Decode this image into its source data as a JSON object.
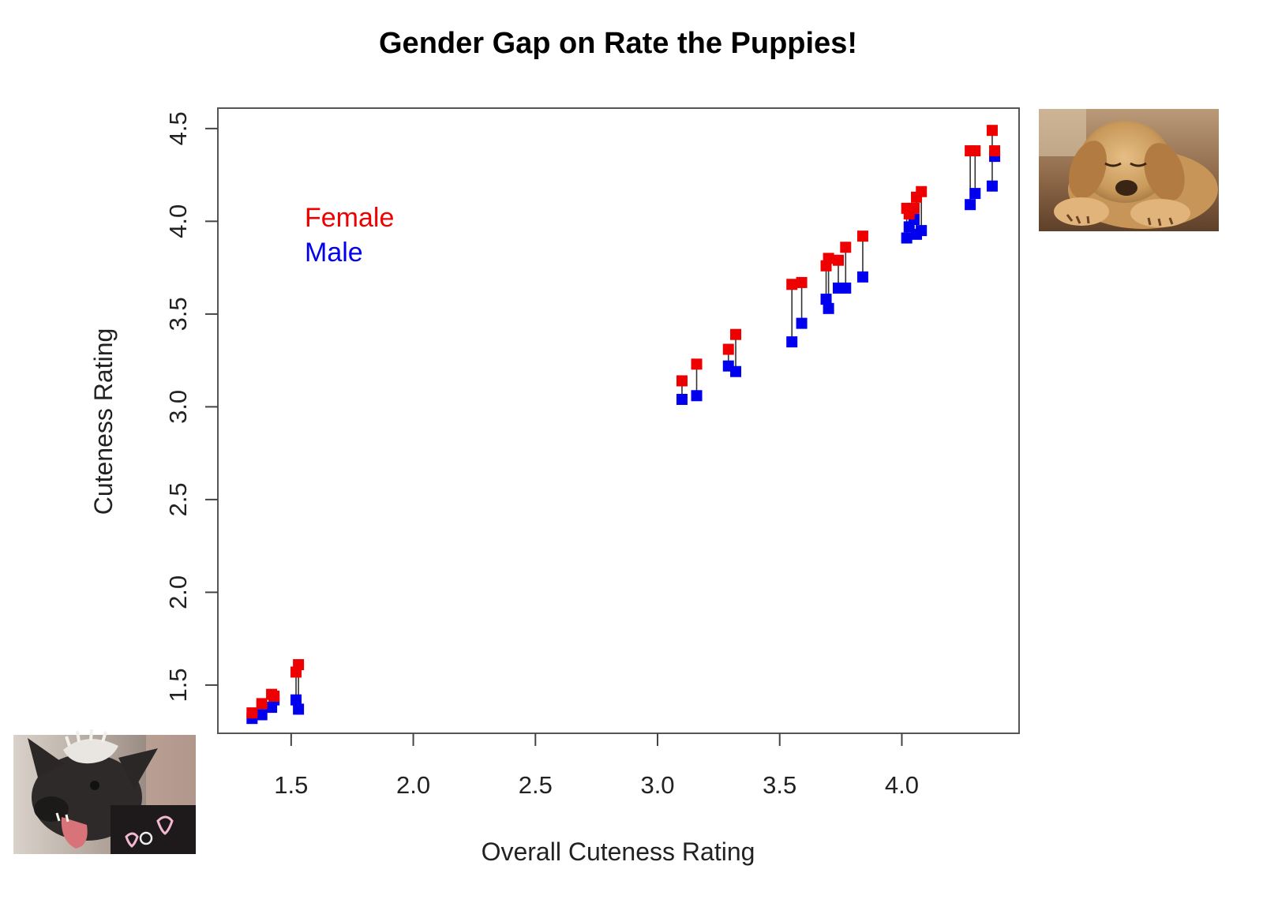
{
  "colors": {
    "female": "#ee0000",
    "male": "#0000ee",
    "connector": "#333333",
    "frame": "#555555"
  },
  "images": {
    "top_right": "sleeping-puppy-photo",
    "bottom_left": "hairless-dog-photo"
  },
  "chart_data": {
    "type": "scatter",
    "title": "Gender Gap on Rate the Puppies!",
    "xlabel": "Overall Cuteness Rating",
    "ylabel": "Cuteness Rating",
    "xlim": [
      1.2,
      4.48
    ],
    "ylim": [
      1.24,
      4.61
    ],
    "xticks": [
      "1.5",
      "2.0",
      "2.5",
      "3.0",
      "3.5",
      "4.0"
    ],
    "yticks": [
      "1.5",
      "2.0",
      "2.5",
      "3.0",
      "3.5",
      "4.0",
      "4.5"
    ],
    "legend": {
      "position": "top-left",
      "entries": [
        "Female",
        "Male"
      ]
    },
    "grid": false,
    "x": [
      1.34,
      1.38,
      1.42,
      1.43,
      1.52,
      1.53,
      3.1,
      3.16,
      3.29,
      3.32,
      3.55,
      3.59,
      3.69,
      3.7,
      3.74,
      3.77,
      3.84,
      4.02,
      4.03,
      4.05,
      4.06,
      4.08,
      4.28,
      4.3,
      4.37,
      4.38
    ],
    "series": [
      {
        "name": "Female",
        "values": [
          1.35,
          1.4,
          1.45,
          1.44,
          1.57,
          1.61,
          3.14,
          3.23,
          3.31,
          3.39,
          3.66,
          3.67,
          3.76,
          3.8,
          3.79,
          3.86,
          3.92,
          4.07,
          4.04,
          4.07,
          4.13,
          4.16,
          4.38,
          4.38,
          4.49,
          4.38
        ]
      },
      {
        "name": "Male",
        "values": [
          1.32,
          1.34,
          1.38,
          1.42,
          1.42,
          1.37,
          3.04,
          3.06,
          3.22,
          3.19,
          3.35,
          3.45,
          3.58,
          3.53,
          3.64,
          3.64,
          3.7,
          3.91,
          3.97,
          4.01,
          3.93,
          3.95,
          4.09,
          4.15,
          4.19,
          4.35
        ]
      }
    ]
  }
}
